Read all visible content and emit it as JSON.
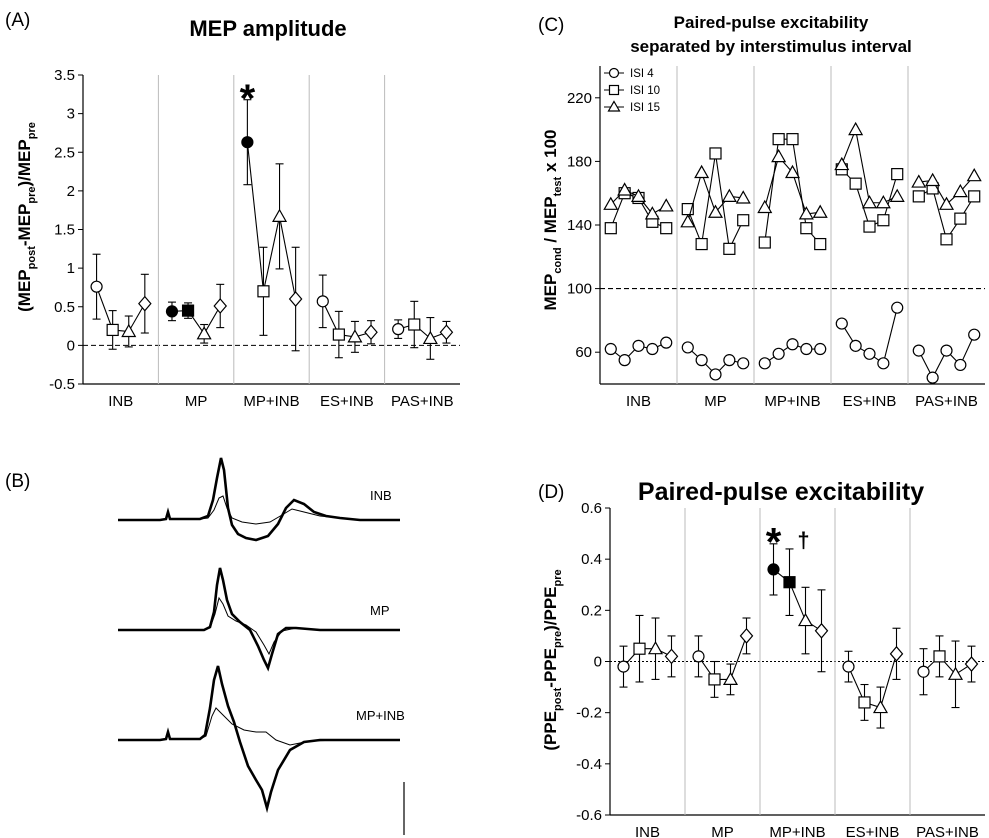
{
  "panels": {
    "A": {
      "letter": "(A)",
      "title": "MEP amplitude"
    },
    "B": {
      "letter": "(B)"
    },
    "C": {
      "letter": "(C)",
      "title_line1": "Paired-pulse excitability",
      "title_line2": "separated by interstimulus interval"
    },
    "D": {
      "letter": "(D)",
      "title": "Paired-pulse excitability"
    }
  },
  "colors": {
    "ink": "#000000",
    "fill_open": "#ffffff",
    "fill_solid": "#000000",
    "group_divider": "#bbbbbb"
  },
  "traces": [
    {
      "label": "INB",
      "thick_trace": "post",
      "thin_trace": "pre"
    },
    {
      "label": "MP",
      "thick_trace": "post",
      "thin_trace": "pre"
    },
    {
      "label": "MP+INB",
      "thick_trace": "post",
      "thin_trace": "pre"
    }
  ],
  "chart_data": [
    {
      "id": "A",
      "type": "scatter",
      "title": "MEP amplitude",
      "ylabel_parts": {
        "a": "(MEP",
        "a_sub": "post",
        "b": "-MEP",
        "b_sub": "pre",
        "c": ")/MEP",
        "c_sub": "pre"
      },
      "categories": [
        "INB",
        "MP",
        "MP+INB",
        "ES+INB",
        "PAS+INB"
      ],
      "ylim": [
        -0.5,
        3.5
      ],
      "yticks": [
        "-0.5",
        "0",
        "0.5",
        "1",
        "1.5",
        "2",
        "2.5",
        "3",
        "3.5"
      ],
      "reference_line": 0,
      "marker_sequence": [
        "circle",
        "square",
        "triangle",
        "diamond"
      ],
      "groups": [
        {
          "name": "INB",
          "values": [
            0.76,
            0.2,
            0.18,
            0.54
          ],
          "err": [
            0.42,
            0.25,
            0.2,
            0.38
          ],
          "filled": [
            false,
            false,
            false,
            false
          ]
        },
        {
          "name": "MP",
          "values": [
            0.44,
            0.45,
            0.15,
            0.51
          ],
          "err": [
            0.12,
            0.1,
            0.12,
            0.28
          ],
          "filled": [
            true,
            true,
            false,
            false
          ]
        },
        {
          "name": "MP+INB",
          "values": [
            2.63,
            0.7,
            1.67,
            0.6
          ],
          "err": [
            0.55,
            0.57,
            0.68,
            0.67
          ],
          "filled": [
            true,
            false,
            false,
            false
          ]
        },
        {
          "name": "ES+INB",
          "values": [
            0.57,
            0.14,
            0.11,
            0.17
          ],
          "err": [
            0.34,
            0.3,
            0.2,
            0.15
          ],
          "filled": [
            false,
            false,
            false,
            false
          ]
        },
        {
          "name": "PAS+INB",
          "values": [
            0.21,
            0.27,
            0.09,
            0.17
          ],
          "err": [
            0.12,
            0.3,
            0.27,
            0.14
          ],
          "filled": [
            false,
            false,
            false,
            false
          ]
        }
      ],
      "annotations": [
        {
          "text": "*",
          "group": "MP+INB",
          "value": 3.2
        }
      ]
    },
    {
      "id": "C",
      "type": "line",
      "title": "Paired-pulse excitability separated by interstimulus interval",
      "ylabel_parts": {
        "a": "MEP",
        "a_sub": "cond",
        "b": " / MEP",
        "b_sub": "test",
        "c": " x 100"
      },
      "categories": [
        "INB",
        "MP",
        "MP+INB",
        "ES+INB",
        "PAS+INB"
      ],
      "ylim": [
        40,
        240
      ],
      "yticks": [
        "60",
        "100",
        "140",
        "180",
        "220"
      ],
      "reference_line": 100,
      "legend": {
        "position": "top-left",
        "entries": [
          "ISI 4",
          "ISI 10",
          "ISI 15"
        ]
      },
      "series": [
        {
          "name": "ISI 4",
          "marker": "circle",
          "groups": [
            [
              62,
              55,
              64,
              62,
              66
            ],
            [
              63,
              55,
              46,
              55,
              53
            ],
            [
              53,
              59,
              65,
              62,
              62
            ],
            [
              78,
              64,
              59,
              53,
              88
            ],
            [
              61,
              44,
              61,
              52,
              71
            ]
          ]
        },
        {
          "name": "ISI 10",
          "marker": "square",
          "groups": [
            [
              138,
              160,
              157,
              142,
              138
            ],
            [
              150,
              128,
              185,
              125,
              143
            ],
            [
              129,
              194,
              194,
              138,
              128
            ],
            [
              175,
              166,
              139,
              143,
              172
            ],
            [
              158,
              163,
              131,
              144,
              158
            ]
          ]
        },
        {
          "name": "ISI 15",
          "marker": "triangle",
          "groups": [
            [
              153,
              162,
              158,
              147,
              152
            ],
            [
              142,
              173,
              148,
              158,
              157
            ],
            [
              151,
              183,
              173,
              147,
              148
            ],
            [
              178,
              200,
              154,
              154,
              158
            ],
            [
              167,
              168,
              153,
              161,
              171
            ]
          ]
        }
      ]
    },
    {
      "id": "D",
      "type": "scatter",
      "title": "Paired-pulse excitability",
      "ylabel_parts": {
        "a": "(PPE",
        "a_sub": "post",
        "b": "-PPE",
        "b_sub": "pre",
        "c": ")/PPE",
        "c_sub": "pre"
      },
      "categories": [
        "INB",
        "MP",
        "MP+INB",
        "ES+INB",
        "PAS+INB"
      ],
      "ylim": [
        -0.6,
        0.6
      ],
      "yticks": [
        "-0.6",
        "-0.4",
        "-0.2",
        "0",
        "0.2",
        "0.4",
        "0.6"
      ],
      "reference_line": 0,
      "marker_sequence": [
        "circle",
        "square",
        "triangle",
        "diamond"
      ],
      "groups": [
        {
          "name": "INB",
          "values": [
            -0.02,
            0.05,
            0.05,
            0.02
          ],
          "err": [
            0.08,
            0.13,
            0.12,
            0.08
          ],
          "filled": [
            false,
            false,
            false,
            false
          ]
        },
        {
          "name": "MP",
          "values": [
            0.02,
            -0.07,
            -0.07,
            0.1
          ],
          "err": [
            0.08,
            0.07,
            0.06,
            0.07
          ],
          "filled": [
            false,
            false,
            false,
            false
          ]
        },
        {
          "name": "MP+INB",
          "values": [
            0.36,
            0.31,
            0.16,
            0.12
          ],
          "err": [
            0.1,
            0.13,
            0.13,
            0.16
          ],
          "filled": [
            true,
            true,
            false,
            false
          ]
        },
        {
          "name": "ES+INB",
          "values": [
            -0.02,
            -0.16,
            -0.18,
            0.03
          ],
          "err": [
            0.06,
            0.07,
            0.08,
            0.1
          ],
          "filled": [
            false,
            false,
            false,
            false
          ]
        },
        {
          "name": "PAS+INB",
          "values": [
            -0.04,
            0.02,
            -0.05,
            -0.01
          ],
          "err": [
            0.09,
            0.08,
            0.13,
            0.07
          ],
          "filled": [
            false,
            false,
            false,
            false
          ]
        }
      ],
      "annotations": [
        {
          "text": "*",
          "group": "MP+INB",
          "value": 0.47
        },
        {
          "text": "†",
          "group": "MP+INB",
          "value": 0.5
        }
      ]
    }
  ]
}
